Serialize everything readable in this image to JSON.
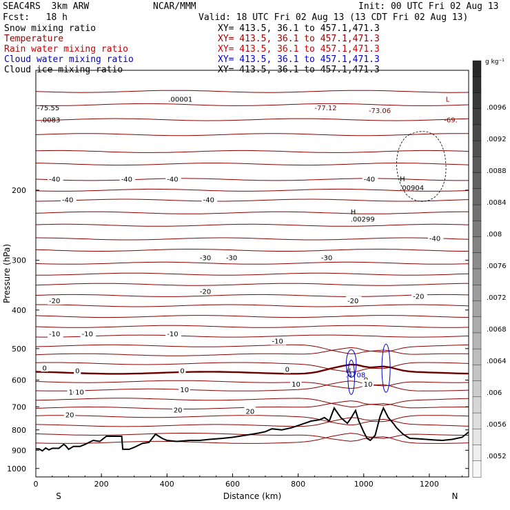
{
  "header": {
    "project": "SEAC4RS  3km ARW",
    "center": "NCAR/MMM",
    "init": "Init: 00 UTC Fri 02 Aug 13",
    "fcst": "Fcst:   18 h",
    "valid": "Valid: 18 UTC Fri 02 Aug 13 (13 CDT Fri 02 Aug 13)",
    "fields": [
      {
        "name": "Snow mixing ratio",
        "xy": "XY= 413.5, 36.1 to 457.1,471.3",
        "color": "#000000"
      },
      {
        "name": "Temperature",
        "xy": "XY= 413.5, 36.1 to 457.1,471.3",
        "color": "#990000"
      },
      {
        "name": "Rain water mixing ratio",
        "xy": "XY= 413.5, 36.1 to 457.1,471.3",
        "color": "#cc0000"
      },
      {
        "name": "Cloud water mixing ratio",
        "xy": "XY= 413.5, 36.1 to 457.1,471.3",
        "color": "#0000cc"
      },
      {
        "name": "Cloud ice mixing ratio",
        "xy": "XY= 413.5, 36.1 to 457.1,471.3",
        "color": "#000000"
      }
    ]
  },
  "chart_data": {
    "type": "cross-section",
    "xlabel": "Distance (km)",
    "ylabel": "Pressure (hPa)",
    "xlim": [
      0,
      1320
    ],
    "ylim_pressure": [
      1050,
      100
    ],
    "y_scale": "log",
    "x_ticks": [
      0,
      200,
      400,
      600,
      800,
      1000,
      1200
    ],
    "y_ticks": [
      200,
      300,
      400,
      500,
      600,
      700,
      800,
      900,
      1000
    ],
    "endpoints": {
      "left": "S",
      "right": "N"
    },
    "colorbar": {
      "unit": "g kg⁻¹",
      "ticks": [
        ".0096",
        ".0092",
        ".0088",
        ".0084",
        ".008",
        ".0076",
        ".0072",
        ".0068",
        ".0064",
        ".006",
        ".0056",
        ".0052"
      ]
    },
    "temperature_labels": [
      {
        "x": 40,
        "p": 188,
        "text": "-40"
      },
      {
        "x": 260,
        "p": 188,
        "text": "-40"
      },
      {
        "x": 400,
        "p": 188,
        "text": "-40"
      },
      {
        "x": 1000,
        "p": 188,
        "text": "-40"
      },
      {
        "x": 80,
        "p": 212,
        "text": "-40"
      },
      {
        "x": 510,
        "p": 212,
        "text": "-40"
      },
      {
        "x": 500,
        "p": 296,
        "text": "-30"
      },
      {
        "x": 870,
        "p": 296,
        "text": "-30"
      },
      {
        "x": 580,
        "p": 296,
        "text": "-30"
      },
      {
        "x": 1200,
        "p": 265,
        "text": "-40"
      },
      {
        "x": 40,
        "p": 380,
        "text": "-20"
      },
      {
        "x": 500,
        "p": 360,
        "text": "-20"
      },
      {
        "x": 950,
        "p": 380,
        "text": "-20"
      },
      {
        "x": 1150,
        "p": 370,
        "text": "-20"
      },
      {
        "x": 40,
        "p": 460,
        "text": "-10"
      },
      {
        "x": 140,
        "p": 460,
        "text": "-10"
      },
      {
        "x": 400,
        "p": 460,
        "text": "-10"
      },
      {
        "x": 720,
        "p": 480,
        "text": "-10"
      },
      {
        "x": 20,
        "p": 560,
        "text": "0"
      },
      {
        "x": 120,
        "p": 570,
        "text": "0"
      },
      {
        "x": 440,
        "p": 570,
        "text": "0"
      },
      {
        "x": 760,
        "p": 565,
        "text": "0"
      },
      {
        "x": 1000,
        "p": 600,
        "text": "0"
      },
      {
        "x": 100,
        "p": 645,
        "text": "10"
      },
      {
        "x": 120,
        "p": 645,
        "text": "10"
      },
      {
        "x": 440,
        "p": 635,
        "text": "10"
      },
      {
        "x": 780,
        "p": 615,
        "text": "10"
      },
      {
        "x": 1000,
        "p": 615,
        "text": "10"
      },
      {
        "x": 90,
        "p": 735,
        "text": "20"
      },
      {
        "x": 420,
        "p": 715,
        "text": "20"
      },
      {
        "x": 640,
        "p": 720,
        "text": "20"
      }
    ],
    "extrema_labels": [
      {
        "x": 960,
        "p": 230,
        "text": "H"
      },
      {
        "x": 960,
        "p": 240,
        "text": ".00299"
      },
      {
        "x": 1110,
        "p": 190,
        "text": "H"
      },
      {
        "x": 1110,
        "p": 200,
        "text": ".00904"
      },
      {
        "x": 945,
        "p": 575,
        "text": "H"
      },
      {
        "x": 945,
        "p": 590,
        "text": ".4708"
      },
      {
        "x": 1250,
        "p": 120,
        "text": "L"
      },
      {
        "x": 1245,
        "p": 135,
        "text": "-69."
      },
      {
        "x": 1015,
        "p": 128,
        "text": "-73.06"
      },
      {
        "x": 850,
        "p": 126,
        "text": "-77.12"
      }
    ],
    "misc_labels": [
      {
        "x": 0,
        "p": 126,
        "text": "-75.55"
      },
      {
        "x": 400,
        "p": 120,
        "text": ".00001"
      },
      {
        "x": 10,
        "p": 135,
        "text": ".0083"
      }
    ],
    "terrain": [
      [
        0,
        893
      ],
      [
        10,
        893
      ],
      [
        20,
        903
      ],
      [
        30,
        888
      ],
      [
        40,
        898
      ],
      [
        50,
        890
      ],
      [
        60,
        890
      ],
      [
        70,
        890
      ],
      [
        85,
        870
      ],
      [
        90,
        875
      ],
      [
        100,
        895
      ],
      [
        115,
        880
      ],
      [
        135,
        880
      ],
      [
        150,
        870
      ],
      [
        175,
        850
      ],
      [
        195,
        855
      ],
      [
        215,
        830
      ],
      [
        240,
        830
      ],
      [
        262,
        830
      ],
      [
        265,
        895
      ],
      [
        285,
        895
      ],
      [
        300,
        885
      ],
      [
        325,
        865
      ],
      [
        345,
        860
      ],
      [
        365,
        820
      ],
      [
        385,
        840
      ],
      [
        400,
        850
      ],
      [
        430,
        855
      ],
      [
        470,
        850
      ],
      [
        500,
        850
      ],
      [
        530,
        845
      ],
      [
        570,
        840
      ],
      [
        600,
        835
      ],
      [
        640,
        825
      ],
      [
        680,
        815
      ],
      [
        700,
        808
      ],
      [
        720,
        795
      ],
      [
        750,
        800
      ],
      [
        780,
        790
      ],
      [
        800,
        780
      ],
      [
        820,
        770
      ],
      [
        840,
        760
      ],
      [
        865,
        755
      ],
      [
        880,
        745
      ],
      [
        895,
        760
      ],
      [
        910,
        705
      ],
      [
        930,
        745
      ],
      [
        950,
        770
      ],
      [
        960,
        750
      ],
      [
        975,
        715
      ],
      [
        985,
        760
      ],
      [
        1000,
        810
      ],
      [
        1010,
        840
      ],
      [
        1020,
        850
      ],
      [
        1035,
        825
      ],
      [
        1050,
        740
      ],
      [
        1060,
        705
      ],
      [
        1075,
        745
      ],
      [
        1090,
        770
      ],
      [
        1100,
        790
      ],
      [
        1120,
        820
      ],
      [
        1140,
        840
      ],
      [
        1165,
        842
      ],
      [
        1190,
        845
      ],
      [
        1215,
        848
      ],
      [
        1240,
        850
      ],
      [
        1270,
        845
      ],
      [
        1300,
        835
      ],
      [
        1320,
        810
      ]
    ],
    "isotherms_p": [
      113,
      122,
      133,
      145,
      160,
      172,
      188,
      200,
      212,
      228,
      245,
      265,
      283,
      305,
      325,
      345,
      368,
      390,
      415,
      440,
      465,
      492,
      518,
      545,
      575,
      605,
      635,
      670,
      705,
      740,
      780,
      820,
      860
    ]
  },
  "colors": {
    "temperature": "#8b0000",
    "temperature_zero": "#6b0000",
    "cloud_water": "#0000cc",
    "terrain": "#000000"
  }
}
